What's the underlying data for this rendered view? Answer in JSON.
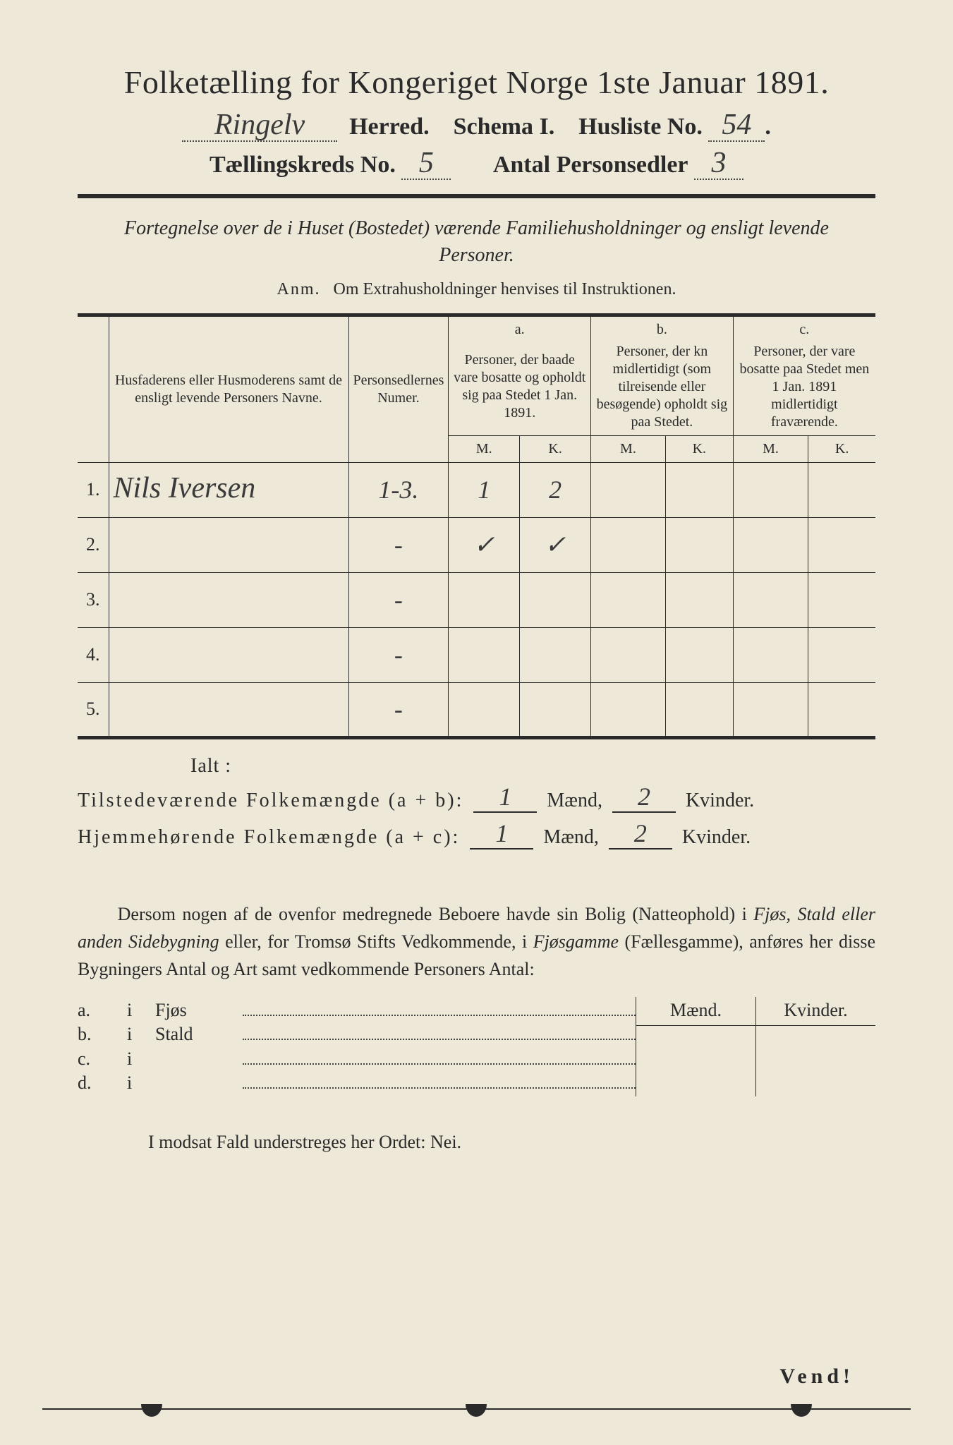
{
  "header": {
    "title": "Folketælling for Kongeriget Norge 1ste Januar 1891.",
    "herred_value": "Ringelv",
    "herred_label": "Herred.",
    "schema_label": "Schema I.",
    "husliste_label": "Husliste No.",
    "husliste_value": "54",
    "kreds_label": "Tællingskreds No.",
    "kreds_value": "5",
    "antal_label": "Antal Personsedler",
    "antal_value": "3"
  },
  "fortegnelse": "Fortegnelse over de i Huset (Bostedet) værende Familiehusholdninger og ensligt levende Personer.",
  "anm_label": "Anm.",
  "anm_text": "Om Extrahusholdninger henvises til Instruktionen.",
  "table": {
    "col1": "Husfaderens eller Husmoderens samt de ensligt levende Personers Navne.",
    "col2": "Personsedlernes Numer.",
    "col_a_label": "a.",
    "col_a": "Personer, der baade vare bosatte og opholdt sig paa Stedet 1 Jan. 1891.",
    "col_b_label": "b.",
    "col_b": "Personer, der kn midlertidigt (som tilreisende eller besøgende) opholdt sig paa Stedet.",
    "col_c_label": "c.",
    "col_c": "Personer, der vare bosatte paa Stedet men 1 Jan. 1891 midlertidigt fraværende.",
    "m": "M.",
    "k": "K.",
    "rows": [
      {
        "n": "1.",
        "name": "Nils Iversen",
        "numer": "1-3.",
        "aM": "1",
        "aK": "2",
        "bM": "",
        "bK": "",
        "cM": "",
        "cK": ""
      },
      {
        "n": "2.",
        "name": "",
        "numer": "-",
        "aM": "✓",
        "aK": "✓",
        "bM": "",
        "bK": "",
        "cM": "",
        "cK": ""
      },
      {
        "n": "3.",
        "name": "",
        "numer": "-",
        "aM": "",
        "aK": "",
        "bM": "",
        "bK": "",
        "cM": "",
        "cK": ""
      },
      {
        "n": "4.",
        "name": "",
        "numer": "-",
        "aM": "",
        "aK": "",
        "bM": "",
        "bK": "",
        "cM": "",
        "cK": ""
      },
      {
        "n": "5.",
        "name": "",
        "numer": "-",
        "aM": "",
        "aK": "",
        "bM": "",
        "bK": "",
        "cM": "",
        "cK": ""
      }
    ]
  },
  "ialt": "Ialt :",
  "sum1_label": "Tilstedeværende Folkemængde (a + b):",
  "sum2_label": "Hjemmehørende Folkemængde (a + c):",
  "sum1_m": "1",
  "sum1_k": "2",
  "sum2_m": "1",
  "sum2_k": "2",
  "maend": "Mænd,",
  "kvinder": "Kvinder.",
  "paragraph": {
    "p1a": "Dersom nogen af de ovenfor medregnede Beboere havde sin Bolig (Natteophold) i ",
    "p1b": "Fjøs, Stald eller anden Sidebygning",
    "p1c": " eller, for Tromsø Stifts Vedkommende, i ",
    "p1d": "Fjøsgamme",
    "p1e": " (Fællesgamme), anføres her disse Bygningers Antal og Art samt vedkommende Personers Antal:"
  },
  "sidebuild": {
    "maend": "Mænd.",
    "kvinder": "Kvinder.",
    "rows": [
      {
        "lbl": "a.",
        "i": "i",
        "type": "Fjøs"
      },
      {
        "lbl": "b.",
        "i": "i",
        "type": "Stald"
      },
      {
        "lbl": "c.",
        "i": "i",
        "type": ""
      },
      {
        "lbl": "d.",
        "i": "i",
        "type": ""
      }
    ]
  },
  "modsat": "I modsat Fald understreges her Ordet: Nei.",
  "vend": "Vend!",
  "colors": {
    "paper": "#ede8d8",
    "ink": "#2a2a2a",
    "frame": "#2a2a2a"
  }
}
